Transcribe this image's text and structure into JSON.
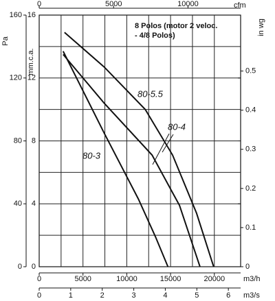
{
  "chart_data": {
    "type": "line",
    "title": [
      "8 Polos (motor 2 veloc.",
      " - 4/8 Polos)"
    ],
    "xlabel": "m3/h",
    "ylabel": "Pa",
    "xlim": [
      0,
      23000
    ],
    "xticks": [
      0,
      5000,
      10000,
      15000,
      20000
    ],
    "ylim": [
      0,
      160
    ],
    "yticks": [
      0,
      40,
      80,
      120,
      160
    ],
    "grid_x": [
      2500,
      5000,
      7500,
      10000,
      12500,
      15000,
      17500,
      20000
    ],
    "grid_y": [
      20,
      40,
      60,
      80,
      100,
      120,
      140
    ],
    "x2label": "m3/s",
    "x2lim": [
      0,
      6.389
    ],
    "x2ticks": [
      0,
      1,
      2,
      3,
      4,
      5,
      6
    ],
    "x3label": "cfm",
    "x3lim": [
      0,
      13537
    ],
    "x3ticks": [
      0,
      5000,
      10000
    ],
    "y2label": "mm.c.a.",
    "y2lim": [
      0,
      16
    ],
    "y2ticks": [
      0,
      4,
      8,
      12,
      16
    ],
    "y3label": "in wg",
    "y3lim": [
      0,
      0.643
    ],
    "y3ticks": [
      0,
      0.1,
      0.2,
      0.3,
      0.4,
      0.5
    ],
    "series": [
      {
        "name": "80-3",
        "color": "#111111",
        "x": [
          2734,
          7420,
          11330,
          13280,
          14700
        ],
        "values": [
          137,
          85,
          43,
          19,
          0
        ]
      },
      {
        "name": "80-4",
        "color": "#111111",
        "x": [
          2734,
          7420,
          12890,
          16020,
          18360
        ],
        "values": [
          135,
          104,
          71,
          39,
          0
        ]
      },
      {
        "name": "80-5.5",
        "color": "#111111",
        "x": [
          2890,
          7420,
          12110,
          15230,
          17970,
          19920
        ],
        "values": [
          149,
          127,
          100,
          71,
          34,
          0
        ]
      }
    ]
  }
}
